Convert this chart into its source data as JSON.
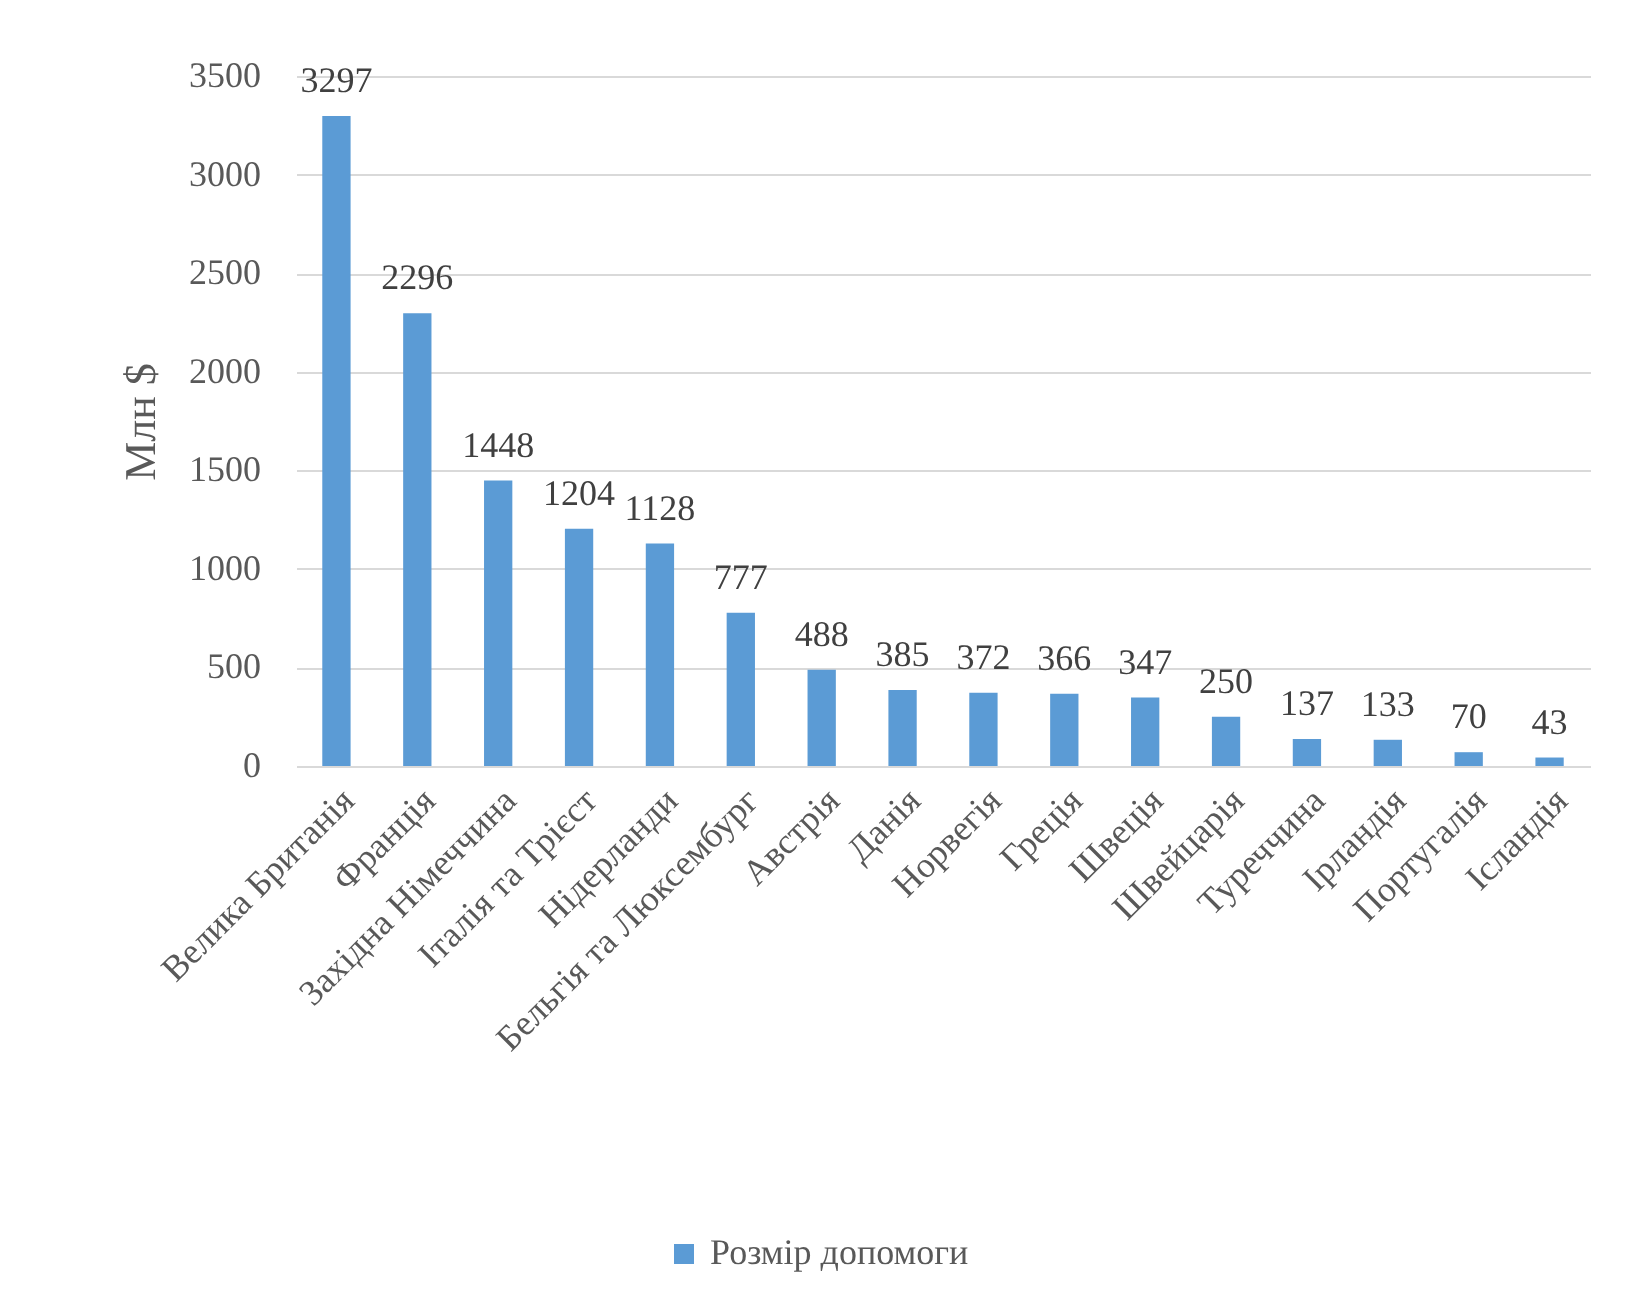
{
  "chart_data": {
    "type": "bar",
    "categories": [
      "Велика Британія",
      "Франція",
      "Західна Німеччина",
      "Італія та Трієст",
      "Нідерланди",
      "Бельгія та Люксембург",
      "Австрія",
      "Данія",
      "Норвегія",
      "Греція",
      "Швеція",
      "Швейцарія",
      "Туреччина",
      "Ірландія",
      "Португалія",
      "Ісландія"
    ],
    "series": [
      {
        "name": "Розмір допомоги",
        "color": "#5b9bd5",
        "values": [
          3297,
          2296,
          1448,
          1204,
          1128,
          777,
          488,
          385,
          372,
          366,
          347,
          250,
          137,
          133,
          70,
          43
        ]
      }
    ],
    "ylabel": "Млн $",
    "ylim": [
      0,
      3500
    ],
    "yticks": [
      0,
      500,
      1000,
      1500,
      2000,
      2500,
      3000,
      3500
    ],
    "grid": "y",
    "legend": "bottom",
    "data_labels": true
  }
}
